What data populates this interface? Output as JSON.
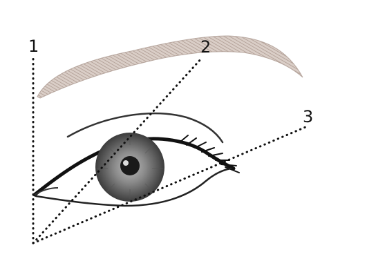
{
  "labels": {
    "line_1": "1",
    "line_2": "2",
    "line_3": "3"
  },
  "colors": {
    "background": "#ffffff",
    "brow": "#b9a9a1",
    "ink": "#1a1a1a",
    "iris": "#6f6f6f"
  },
  "icons": {
    "brow": "eyebrow-drawing",
    "eye": "eye-drawing"
  }
}
